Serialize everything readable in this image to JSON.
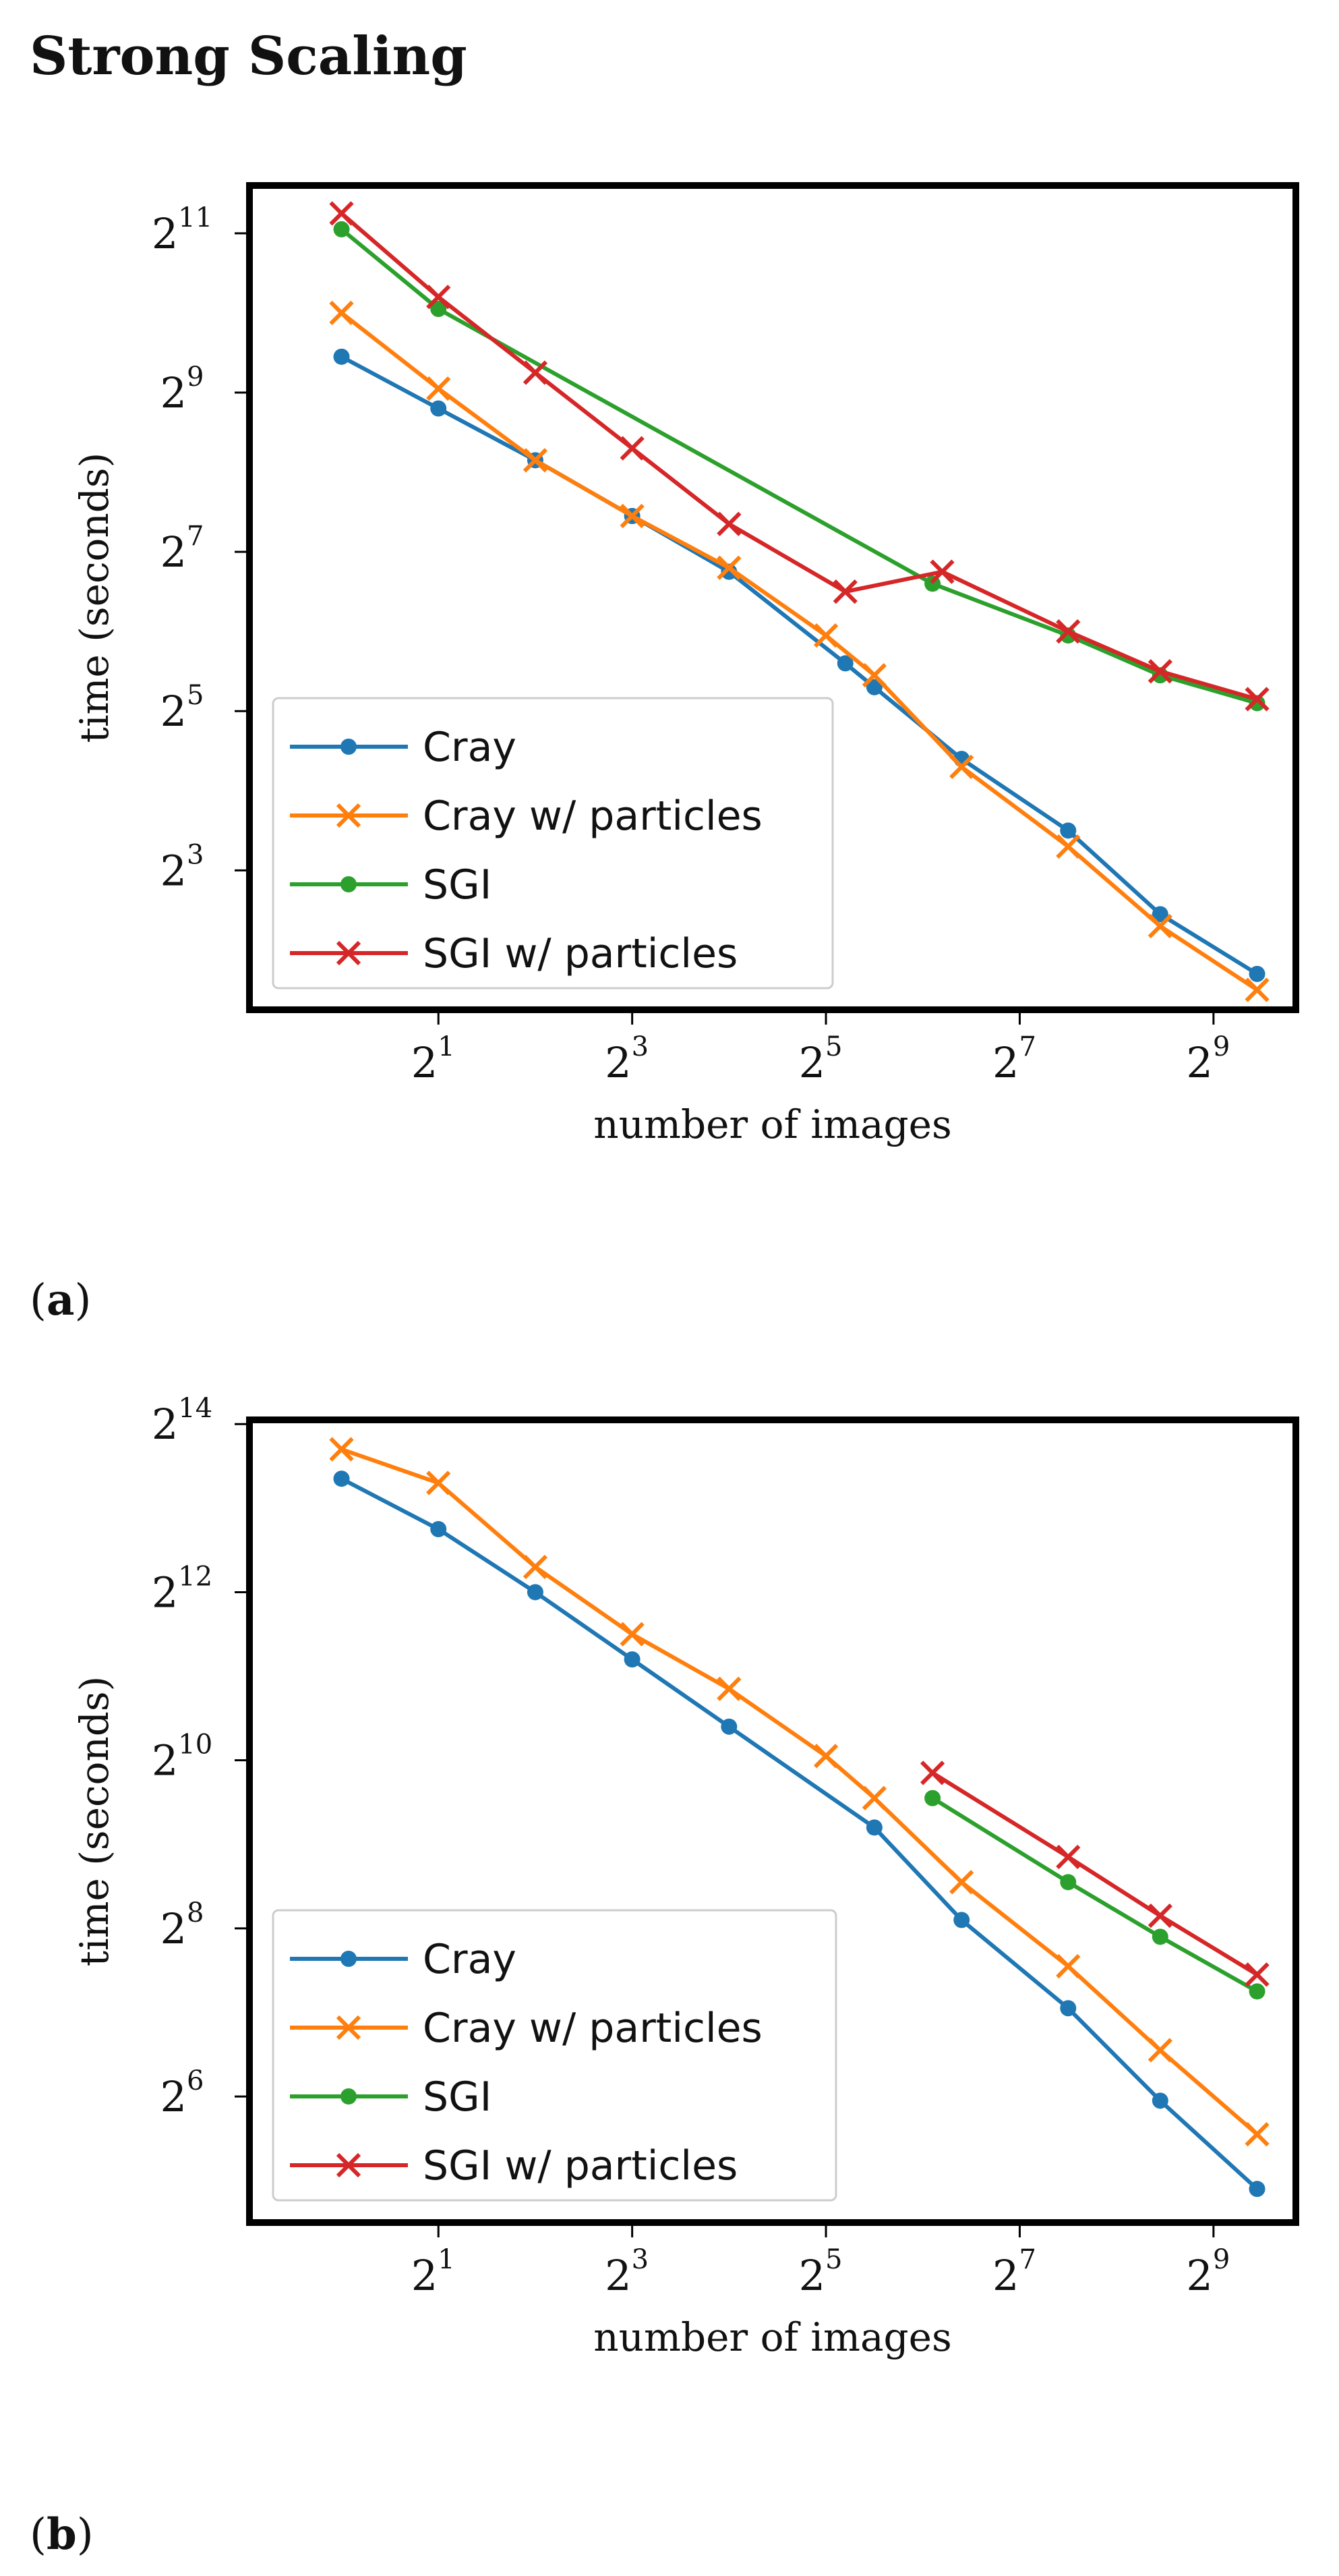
{
  "heading": "Strong Scaling",
  "chart_data": [
    {
      "panel": "a",
      "panel_label": "a",
      "type": "line",
      "xlabel": "number of images",
      "ylabel": "time (seconds)",
      "xscale": "log2",
      "yscale": "log2",
      "xlim_exp": [
        -0.95,
        9.85
      ],
      "ylim_exp": [
        1.25,
        11.6
      ],
      "xticks_exp": [
        1,
        3,
        5,
        7,
        9
      ],
      "yticks_exp": [
        3,
        5,
        7,
        9,
        11
      ],
      "legend_position": "lower-left",
      "series": [
        {
          "name": "Cray",
          "color": "#1f77b4",
          "marker": "dot",
          "x_exp": [
            0,
            1,
            2,
            3,
            4,
            5.2,
            5.5,
            6.4,
            7.5,
            8.45,
            9.45
          ],
          "y_exp": [
            9.45,
            8.8,
            8.15,
            7.45,
            6.75,
            5.6,
            5.3,
            4.4,
            3.5,
            2.45,
            1.7
          ]
        },
        {
          "name": "Cray w/ particles",
          "color": "#ff7f0e",
          "marker": "x",
          "x_exp": [
            0,
            1,
            2,
            3,
            4,
            5,
            5.5,
            6.4,
            7.5,
            8.45,
            9.45
          ],
          "y_exp": [
            10.0,
            9.05,
            8.15,
            7.45,
            6.8,
            5.95,
            5.45,
            4.3,
            3.3,
            2.3,
            1.5
          ]
        },
        {
          "name": "SGI",
          "color": "#2ca02c",
          "marker": "dot",
          "x_exp": [
            0,
            1,
            6.1,
            7.5,
            8.45,
            9.45
          ],
          "y_exp": [
            11.05,
            10.05,
            6.6,
            5.95,
            5.45,
            5.1
          ]
        },
        {
          "name": "SGI w/ particles",
          "color": "#d62728",
          "marker": "x",
          "x_exp": [
            0,
            1,
            2,
            3,
            4,
            5.2,
            6.2,
            7.5,
            8.45,
            9.45
          ],
          "y_exp": [
            11.25,
            10.2,
            9.25,
            8.3,
            7.35,
            6.5,
            6.75,
            6.0,
            5.5,
            5.15
          ]
        }
      ]
    },
    {
      "panel": "b",
      "panel_label": "b",
      "type": "line",
      "xlabel": "number of images",
      "ylabel": "time (seconds)",
      "xscale": "log2",
      "yscale": "log2",
      "xlim_exp": [
        -0.95,
        9.85
      ],
      "ylim_exp": [
        4.5,
        14.05
      ],
      "xticks_exp": [
        1,
        3,
        5,
        7,
        9
      ],
      "yticks_exp": [
        6,
        8,
        10,
        12,
        14
      ],
      "legend_position": "lower-left",
      "series": [
        {
          "name": "Cray",
          "color": "#1f77b4",
          "marker": "dot",
          "x_exp": [
            0,
            1,
            2,
            3,
            4,
            5.5,
            6.4,
            7.5,
            8.45,
            9.45
          ],
          "y_exp": [
            13.35,
            12.75,
            12.0,
            11.2,
            10.4,
            9.2,
            8.1,
            7.05,
            5.95,
            4.9
          ]
        },
        {
          "name": "Cray w/ particles",
          "color": "#ff7f0e",
          "marker": "x",
          "x_exp": [
            0,
            1,
            2,
            3,
            4,
            5,
            5.5,
            6.4,
            7.5,
            8.45,
            9.45
          ],
          "y_exp": [
            13.7,
            13.3,
            12.3,
            11.5,
            10.85,
            10.05,
            9.55,
            8.55,
            7.55,
            6.55,
            5.55
          ]
        },
        {
          "name": "SGI",
          "color": "#2ca02c",
          "marker": "dot",
          "x_exp": [
            6.1,
            7.5,
            8.45,
            9.45
          ],
          "y_exp": [
            9.55,
            8.55,
            7.9,
            7.25
          ]
        },
        {
          "name": "SGI w/ particles",
          "color": "#d62728",
          "marker": "x",
          "x_exp": [
            6.1,
            7.5,
            8.45,
            9.45
          ],
          "y_exp": [
            9.85,
            8.85,
            8.15,
            7.45
          ]
        }
      ]
    }
  ]
}
